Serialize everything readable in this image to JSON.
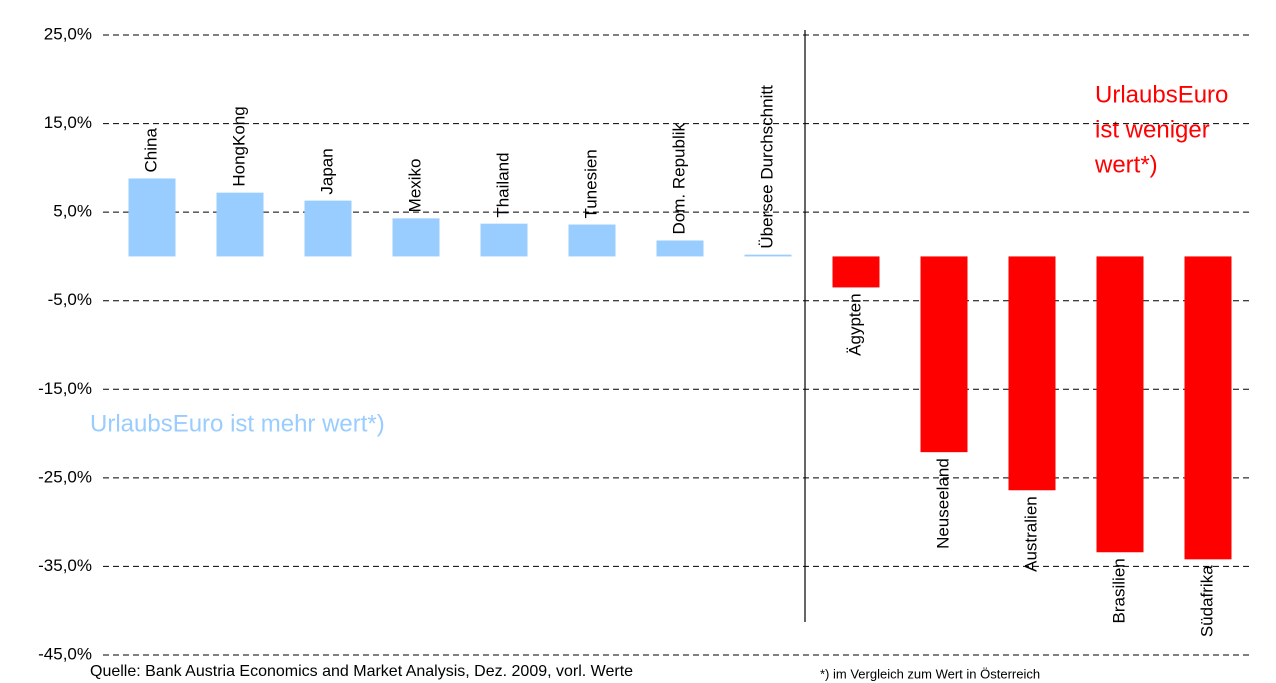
{
  "chart_data": {
    "type": "bar",
    "categories": [
      "China",
      "HongKong",
      "Japan",
      "Mexiko",
      "Thailand",
      "Tunesien",
      "Dom. Republik",
      "Übersee Durchschnitt",
      "Ägypten",
      "Neuseeland",
      "Australien",
      "Brasilien",
      "Südafrika"
    ],
    "values": [
      8.8,
      7.2,
      6.3,
      4.3,
      3.7,
      3.6,
      1.8,
      0.2,
      -3.5,
      -22.1,
      -26.4,
      -33.4,
      -34.2
    ],
    "colors": [
      "#99ccff",
      "#99ccff",
      "#99ccff",
      "#99ccff",
      "#99ccff",
      "#99ccff",
      "#99ccff",
      "#99ccff",
      "#ff0000",
      "#ff0000",
      "#ff0000",
      "#ff0000",
      "#ff0000"
    ],
    "ylim": [
      -45,
      25
    ],
    "yticks": [
      {
        "value": -45,
        "label": "-45,0%"
      },
      {
        "value": -35,
        "label": "-35,0%"
      },
      {
        "value": -25,
        "label": "-25,0%"
      },
      {
        "value": -15,
        "label": "-15,0%"
      },
      {
        "value": -5,
        "label": "-5,0%"
      },
      {
        "value": 5,
        "label": "5,0%"
      },
      {
        "value": 15,
        "label": "15,0%"
      },
      {
        "value": 25,
        "label": "25,0%"
      }
    ],
    "grid": true,
    "annotation_positive": "UrlaubsEuro ist mehr wert*)",
    "annotation_negative": [
      "UrlaubsEuro",
      "ist weniger",
      "wert*)"
    ],
    "source": "Quelle: Bank Austria Economics and Market Analysis, Dez. 2009, vorl. Werte",
    "footnote": "*) im Vergleich zum Wert in Österreich"
  }
}
